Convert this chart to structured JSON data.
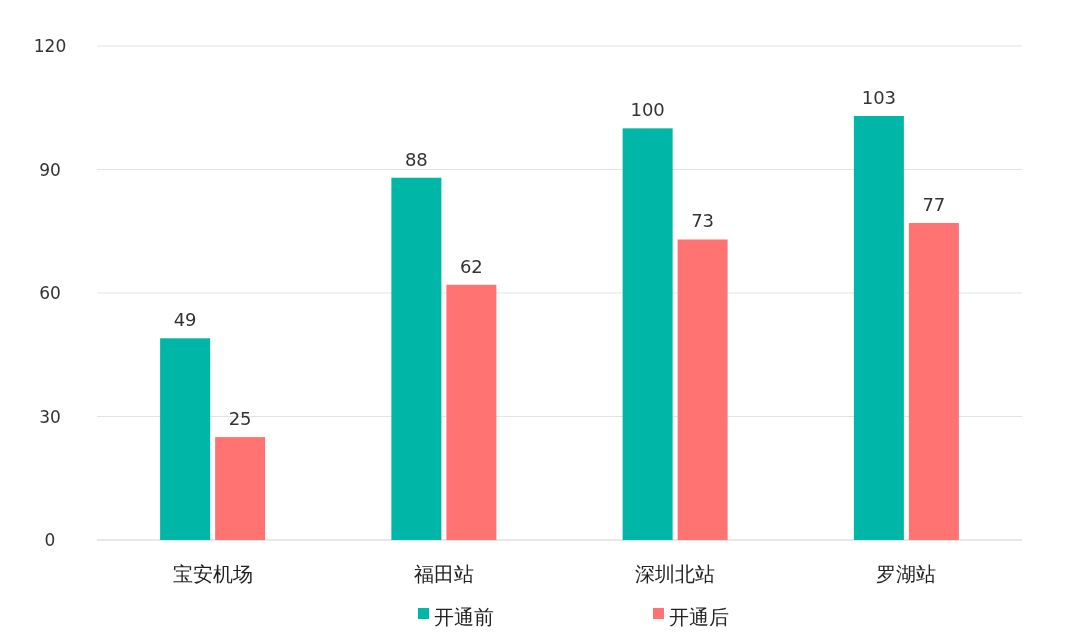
{
  "chart_data": {
    "type": "bar",
    "categories": [
      "宝安机场",
      "福田站",
      "深圳北站",
      "罗湖站"
    ],
    "series": [
      {
        "name": "开通前",
        "color": "#00b6a6",
        "values": [
          49,
          88,
          100,
          103
        ]
      },
      {
        "name": "开通后",
        "color": "#ff7373",
        "values": [
          25,
          62,
          73,
          77
        ]
      }
    ],
    "ylim": [
      0,
      120
    ],
    "yticks": [
      0,
      30,
      60,
      90,
      120
    ],
    "grid": "y",
    "data_labels": true,
    "legend": "bottom"
  }
}
